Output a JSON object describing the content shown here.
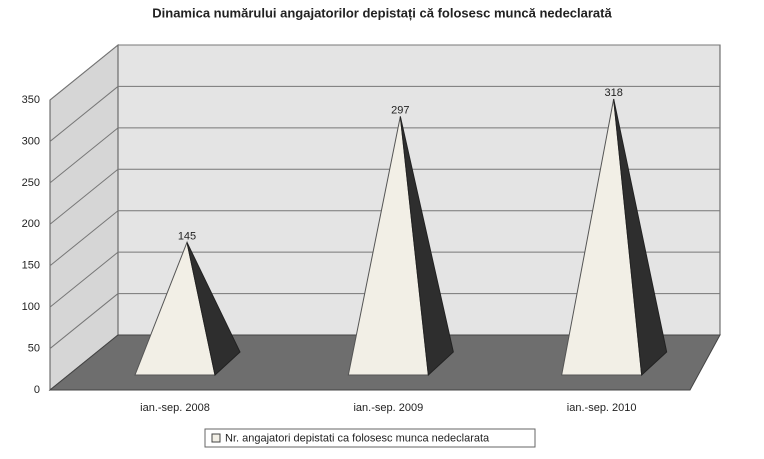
{
  "chart_data": {
    "type": "bar3d",
    "title": "Dinamica numărului angajatorilor depistați că folosesc muncă nedeclarată",
    "categories": [
      "ian.-sep. 2008",
      "ian.-sep. 2009",
      "ian.-sep. 2010"
    ],
    "series": [
      {
        "name": "Nr. angajatori depistati ca folosesc munca nedeclarata",
        "color": "#f2efe6",
        "values": [
          145,
          297,
          318
        ]
      }
    ],
    "ylim": [
      0,
      350
    ],
    "yticks": [
      0,
      50,
      100,
      150,
      200,
      250,
      300,
      350
    ],
    "grid": true,
    "legend": "bottom"
  }
}
